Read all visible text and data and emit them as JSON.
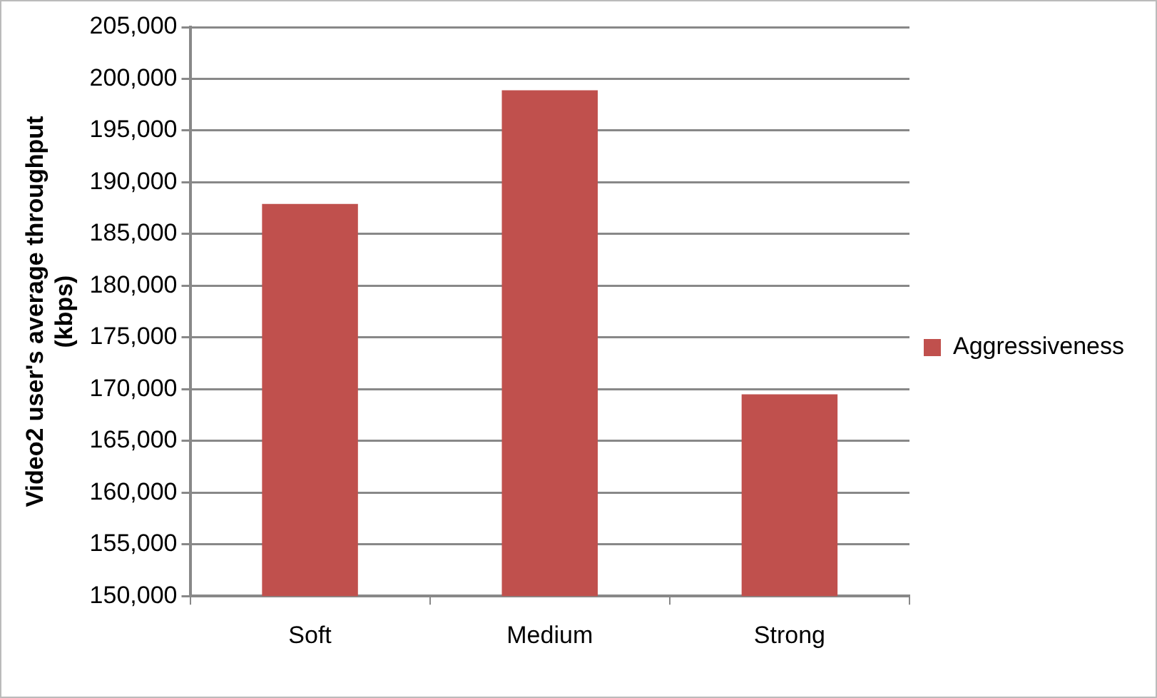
{
  "chart_data": {
    "type": "bar",
    "ylabel": "Video2 user's average throughput\n(kbps)",
    "categories": [
      "Soft",
      "Medium",
      "Strong"
    ],
    "series": [
      {
        "name": "Aggressiveness",
        "color": "#c0504d",
        "values": [
          187900,
          198900,
          169500
        ]
      }
    ],
    "ylim": [
      150000,
      205000
    ],
    "yticks": [
      {
        "value": 150000,
        "label": "150,000"
      },
      {
        "value": 155000,
        "label": "155,000"
      },
      {
        "value": 160000,
        "label": "160,000"
      },
      {
        "value": 165000,
        "label": "165,000"
      },
      {
        "value": 170000,
        "label": "170,000"
      },
      {
        "value": 175000,
        "label": "175,000"
      },
      {
        "value": 180000,
        "label": "180,000"
      },
      {
        "value": 185000,
        "label": "185,000"
      },
      {
        "value": 190000,
        "label": "190,000"
      },
      {
        "value": 195000,
        "label": "195,000"
      },
      {
        "value": 200000,
        "label": "200,000"
      },
      {
        "value": 205000,
        "label": "205,000"
      }
    ],
    "grid": "y",
    "legend": "right"
  }
}
